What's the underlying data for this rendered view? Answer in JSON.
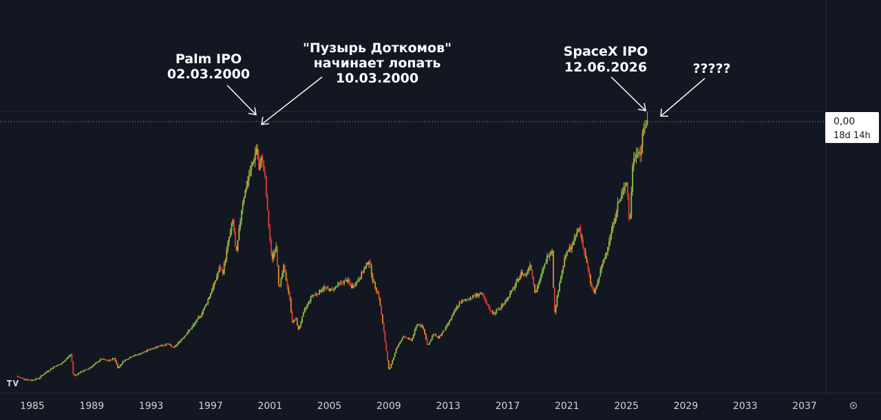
{
  "chart_data": {
    "type": "candlestick",
    "title": "",
    "xlabel": "",
    "ylabel": "",
    "grid": false,
    "x_ticks": [
      "1985",
      "1989",
      "1993",
      "1997",
      "2001",
      "2005",
      "2009",
      "2013",
      "2017",
      "2021",
      "2025",
      "2029",
      "2033",
      "2037"
    ],
    "price_label": {
      "value": "0,00",
      "countdown": "18d 14h"
    },
    "annotations": [
      {
        "id": "palm",
        "lines": [
          "Palm IPO",
          "02.03.2000"
        ],
        "date": "2000-03-02"
      },
      {
        "id": "dotcom",
        "lines": [
          "\"Пузырь Доткомов\"",
          "начинает лопать",
          "10.03.2000"
        ],
        "date": "2000-03-10"
      },
      {
        "id": "spacex",
        "lines": [
          "SpaceX IPO",
          "12.06.2026"
        ],
        "date": "2026-06-12"
      },
      {
        "id": "unknown",
        "lines": [
          "?????"
        ],
        "date": ""
      }
    ],
    "series": [
      {
        "values": [
          [
            1984.0,
            0.1
          ],
          [
            1984.6,
            0.07
          ],
          [
            1985.0,
            0.06
          ],
          [
            1985.5,
            0.08
          ],
          [
            1986.0,
            0.14
          ],
          [
            1986.6,
            0.2
          ],
          [
            1987.0,
            0.22
          ],
          [
            1987.7,
            0.32
          ],
          [
            1987.85,
            0.1
          ],
          [
            1988.3,
            0.14
          ],
          [
            1988.8,
            0.17
          ],
          [
            1989.3,
            0.22
          ],
          [
            1989.7,
            0.27
          ],
          [
            1990.2,
            0.25
          ],
          [
            1990.6,
            0.28
          ],
          [
            1990.85,
            0.18
          ],
          [
            1991.2,
            0.25
          ],
          [
            1991.8,
            0.3
          ],
          [
            1992.3,
            0.32
          ],
          [
            1992.9,
            0.36
          ],
          [
            1993.6,
            0.4
          ],
          [
            1994.2,
            0.42
          ],
          [
            1994.6,
            0.38
          ],
          [
            1995.2,
            0.48
          ],
          [
            1995.8,
            0.58
          ],
          [
            1996.4,
            0.7
          ],
          [
            1996.8,
            0.82
          ],
          [
            1997.3,
            1.0
          ],
          [
            1997.7,
            1.18
          ],
          [
            1997.9,
            1.12
          ],
          [
            1998.3,
            1.45
          ],
          [
            1998.6,
            1.65
          ],
          [
            1998.8,
            1.28
          ],
          [
            1999.2,
            1.8
          ],
          [
            1999.6,
            2.05
          ],
          [
            1999.9,
            2.2
          ],
          [
            2000.2,
            2.38
          ],
          [
            2000.35,
            2.1
          ],
          [
            2000.5,
            2.3
          ],
          [
            2000.75,
            2.05
          ],
          [
            2000.9,
            1.75
          ],
          [
            2001.2,
            1.25
          ],
          [
            2001.5,
            1.4
          ],
          [
            2001.7,
            0.95
          ],
          [
            2002.0,
            1.18
          ],
          [
            2002.4,
            0.88
          ],
          [
            2002.6,
            0.62
          ],
          [
            2002.8,
            0.68
          ],
          [
            2003.0,
            0.56
          ],
          [
            2003.4,
            0.75
          ],
          [
            2003.9,
            0.9
          ],
          [
            2004.3,
            0.92
          ],
          [
            2004.7,
            0.98
          ],
          [
            2005.2,
            0.95
          ],
          [
            2005.8,
            1.02
          ],
          [
            2006.3,
            1.05
          ],
          [
            2006.6,
            0.98
          ],
          [
            2007.0,
            1.05
          ],
          [
            2007.4,
            1.15
          ],
          [
            2007.75,
            1.25
          ],
          [
            2008.0,
            1.05
          ],
          [
            2008.4,
            0.9
          ],
          [
            2008.8,
            0.48
          ],
          [
            2009.1,
            0.15
          ],
          [
            2009.6,
            0.38
          ],
          [
            2010.1,
            0.5
          ],
          [
            2010.6,
            0.45
          ],
          [
            2011.0,
            0.62
          ],
          [
            2011.4,
            0.58
          ],
          [
            2011.7,
            0.4
          ],
          [
            2012.1,
            0.52
          ],
          [
            2012.4,
            0.48
          ],
          [
            2012.8,
            0.55
          ],
          [
            2013.3,
            0.68
          ],
          [
            2013.8,
            0.82
          ],
          [
            2014.3,
            0.86
          ],
          [
            2014.9,
            0.9
          ],
          [
            2015.3,
            0.92
          ],
          [
            2015.7,
            0.8
          ],
          [
            2016.1,
            0.72
          ],
          [
            2016.6,
            0.78
          ],
          [
            2017.1,
            0.88
          ],
          [
            2017.6,
            1.0
          ],
          [
            2018.0,
            1.12
          ],
          [
            2018.3,
            1.1
          ],
          [
            2018.6,
            1.22
          ],
          [
            2018.95,
            0.92
          ],
          [
            2019.3,
            1.08
          ],
          [
            2019.8,
            1.3
          ],
          [
            2020.1,
            1.36
          ],
          [
            2020.22,
            0.7
          ],
          [
            2020.6,
            1.05
          ],
          [
            2021.0,
            1.3
          ],
          [
            2021.5,
            1.42
          ],
          [
            2021.9,
            1.58
          ],
          [
            2022.3,
            1.3
          ],
          [
            2022.7,
            1.0
          ],
          [
            2022.95,
            0.92
          ],
          [
            2023.3,
            1.12
          ],
          [
            2023.7,
            1.32
          ],
          [
            2024.1,
            1.55
          ],
          [
            2024.5,
            1.8
          ],
          [
            2024.8,
            1.9
          ],
          [
            2025.1,
            2.05
          ],
          [
            2025.3,
            1.55
          ],
          [
            2025.5,
            2.2
          ],
          [
            2025.8,
            2.35
          ],
          [
            2026.0,
            2.3
          ],
          [
            2026.25,
            2.55
          ],
          [
            2026.45,
            2.62
          ]
        ]
      }
    ]
  }
}
